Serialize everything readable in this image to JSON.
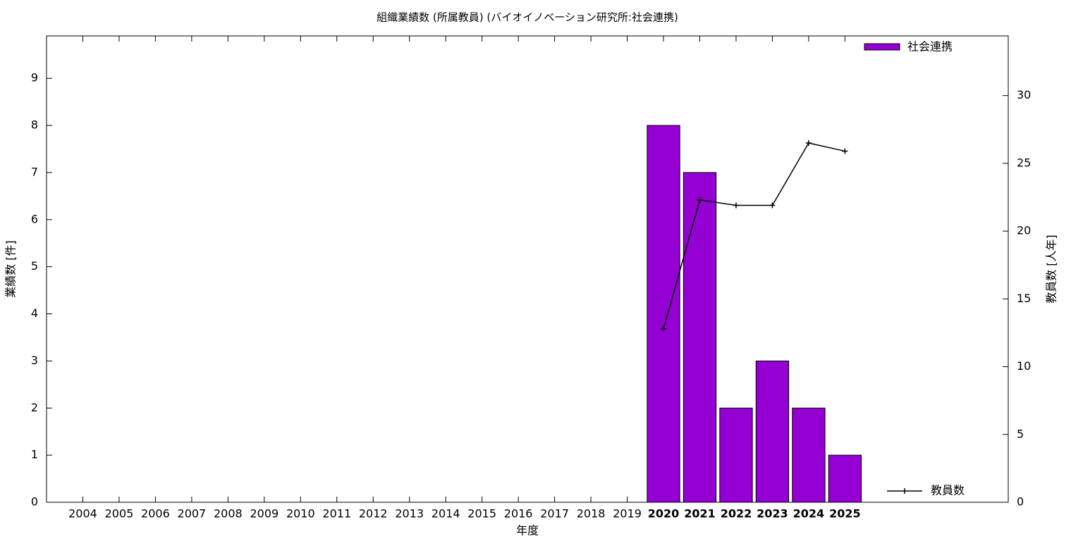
{
  "chart_data": {
    "type": "bar",
    "title": "組織業績数 (所属教員) (バイオイノベーション研究所:社会連携)",
    "x_label": "年度",
    "y_label": "業績数 [件]",
    "y2_label": "教員数 [人年]",
    "categories": [
      "2004",
      "2005",
      "2006",
      "2007",
      "2008",
      "2009",
      "2010",
      "2011",
      "2012",
      "2013",
      "2014",
      "2015",
      "2016",
      "2017",
      "2018",
      "2019",
      "2020",
      "2021",
      "2022",
      "2023",
      "2024",
      "2025"
    ],
    "series": [
      {
        "name": "社会連携",
        "type": "bar",
        "color": "#9400d3",
        "values": [
          null,
          null,
          null,
          null,
          null,
          null,
          null,
          null,
          null,
          null,
          null,
          null,
          null,
          null,
          null,
          null,
          8,
          7,
          2,
          3,
          2,
          1
        ]
      },
      {
        "name": "教員数",
        "type": "line",
        "axis": "y2",
        "color": "#000000",
        "values": [
          null,
          null,
          null,
          null,
          null,
          null,
          null,
          null,
          null,
          null,
          null,
          null,
          null,
          null,
          null,
          null,
          12.8,
          22.3,
          21.9,
          21.9,
          26.5,
          25.9
        ]
      }
    ],
    "ylim": [
      0,
      9.9
    ],
    "yticks": [
      0,
      1,
      2,
      3,
      4,
      5,
      6,
      7,
      8,
      9
    ],
    "y2lim": [
      0,
      34.4
    ],
    "y2ticks": [
      0,
      5,
      10,
      15,
      20,
      25,
      30
    ]
  }
}
